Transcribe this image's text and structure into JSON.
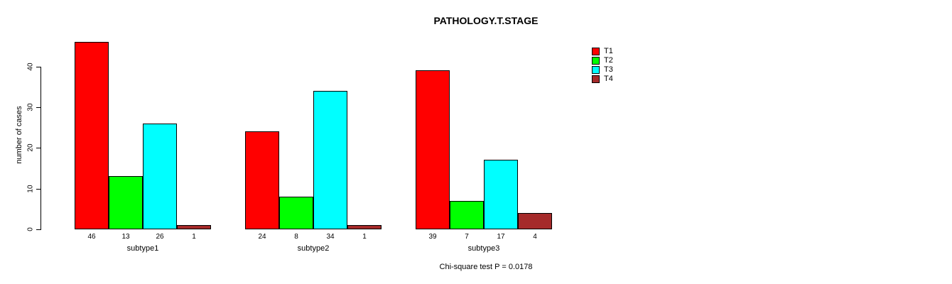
{
  "chart_data": {
    "type": "bar",
    "title": "PATHOLOGY.T.STAGE",
    "ylabel": "number of cases",
    "xlabel": "",
    "ylim": [
      0,
      46
    ],
    "yticks": [
      0,
      10,
      20,
      30,
      40
    ],
    "grid": false,
    "legend_position": "top-right",
    "categories": [
      "subtype1",
      "subtype2",
      "subtype3"
    ],
    "series": [
      {
        "name": "T1",
        "color": "#ff0000",
        "values": [
          46,
          24,
          39
        ]
      },
      {
        "name": "T2",
        "color": "#00ff00",
        "values": [
          13,
          8,
          7
        ]
      },
      {
        "name": "T3",
        "color": "#00ffff",
        "values": [
          26,
          34,
          17
        ]
      },
      {
        "name": "T4",
        "color": "#a52a2a",
        "values": [
          1,
          1,
          4
        ]
      }
    ],
    "bar_value_labels": [
      [
        "46",
        "13",
        "26",
        "1"
      ],
      [
        "24",
        "8",
        "34",
        "1"
      ],
      [
        "39",
        "7",
        "17",
        "4"
      ]
    ],
    "annotation": "Chi-square test P = 0.0178",
    "colors": {
      "background": "#ffffff",
      "axis": "#000000",
      "bar_border": "#000000"
    }
  }
}
